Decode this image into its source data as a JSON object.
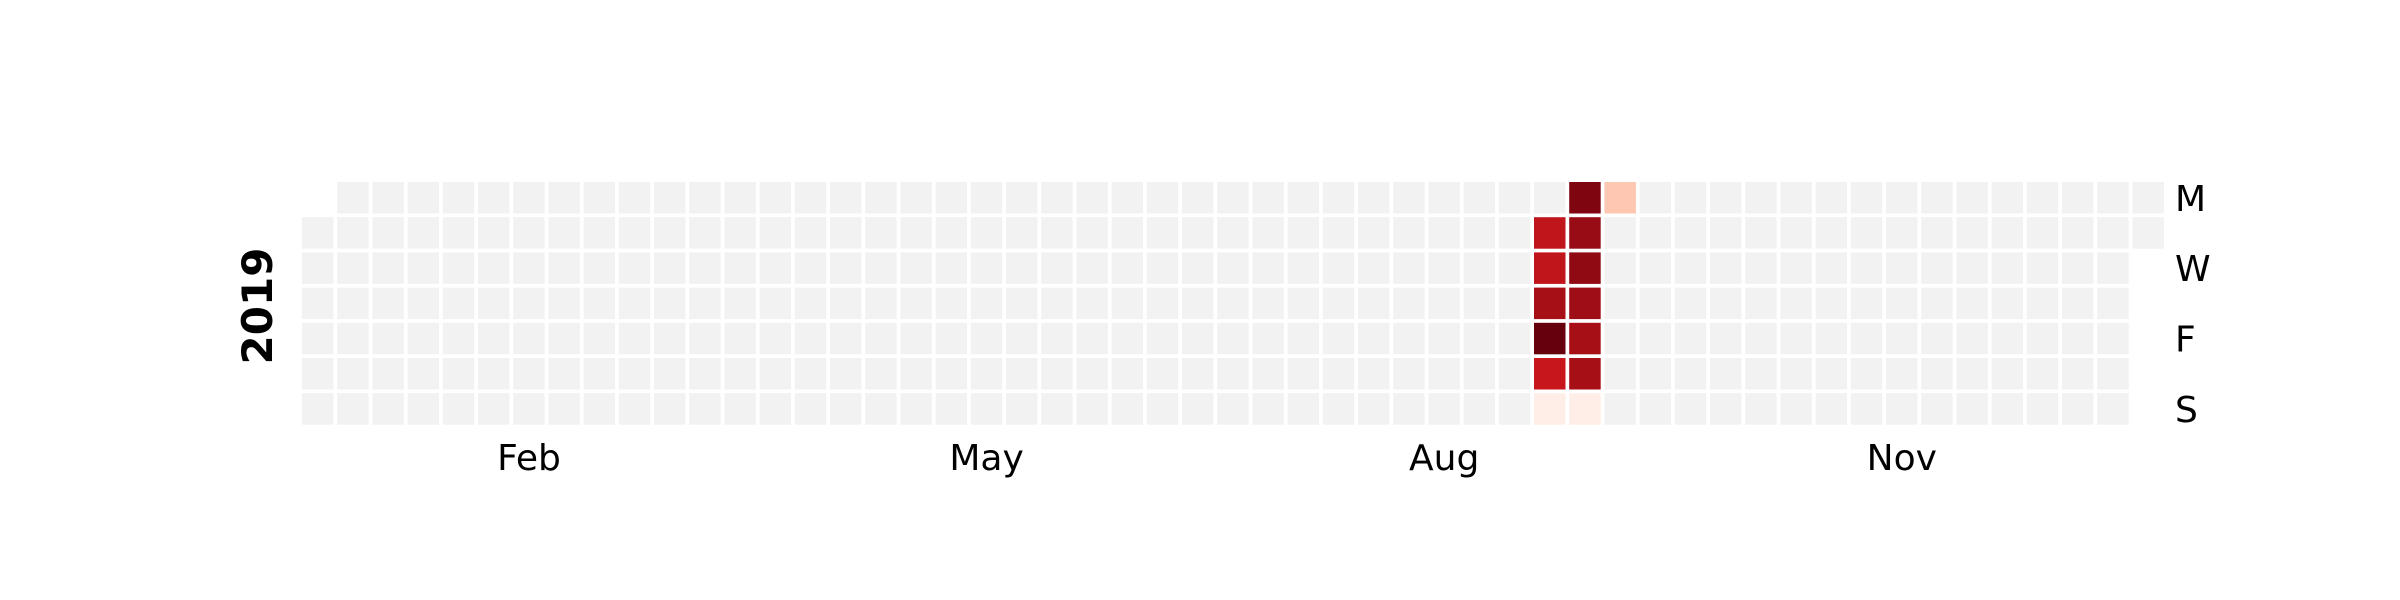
{
  "chart_data": {
    "type": "heatmap",
    "title": "",
    "year_label": "2019",
    "month_labels": [
      {
        "label": "Feb",
        "week": 6
      },
      {
        "label": "May",
        "week": 19
      },
      {
        "label": "Aug",
        "week": 32
      },
      {
        "label": "Nov",
        "week": 45
      }
    ],
    "weekday_labels": [
      {
        "label": "M",
        "day": 0
      },
      {
        "label": "W",
        "day": 2
      },
      {
        "label": "F",
        "day": 4
      },
      {
        "label": "S",
        "day": 6
      }
    ],
    "weeks": 53,
    "first_week_start_day": 1,
    "last_week_end_day": 1,
    "empty_color": "#f2f2f2",
    "color_scale": [
      "#fff5f0",
      "#fcbba1",
      "#fb6a4a",
      "#cb181d",
      "#67000d"
    ],
    "values": [
      {
        "week": 35,
        "day": 1,
        "value": 0.78
      },
      {
        "week": 35,
        "day": 2,
        "value": 0.78
      },
      {
        "week": 35,
        "day": 3,
        "value": 0.84
      },
      {
        "week": 35,
        "day": 4,
        "value": 1.0
      },
      {
        "week": 35,
        "day": 5,
        "value": 0.76
      },
      {
        "week": 35,
        "day": 6,
        "value": 0.03
      },
      {
        "week": 36,
        "day": 0,
        "value": 0.94
      },
      {
        "week": 36,
        "day": 1,
        "value": 0.88
      },
      {
        "week": 36,
        "day": 2,
        "value": 0.9
      },
      {
        "week": 36,
        "day": 3,
        "value": 0.86
      },
      {
        "week": 36,
        "day": 4,
        "value": 0.84
      },
      {
        "week": 36,
        "day": 5,
        "value": 0.84
      },
      {
        "week": 36,
        "day": 6,
        "value": 0.03
      },
      {
        "week": 37,
        "day": 0,
        "value": 0.2
      }
    ]
  }
}
